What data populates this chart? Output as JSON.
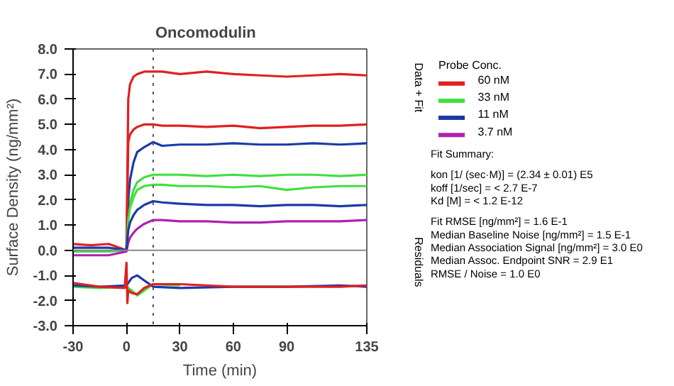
{
  "chart_data": {
    "type": "line",
    "title": "Oncomodulin",
    "xlabel": "Time (min)",
    "ylabel": "Surface Density (ng/mm²)",
    "legend_title": "Probe Conc.",
    "legend": "right",
    "grid": false,
    "line_style": "solid",
    "marker": "none",
    "x": [
      -30,
      -20,
      -10,
      0,
      1,
      2,
      4,
      6,
      10,
      15,
      20,
      30,
      45,
      60,
      75,
      90,
      105,
      120,
      135
    ],
    "xlim": [
      -30,
      135
    ],
    "xticks": [
      -30,
      0,
      30,
      60,
      90,
      135
    ],
    "ylim": [
      -3,
      8
    ],
    "yticks": [
      {
        "value": -3,
        "label": "-3.0"
      },
      {
        "value": -2,
        "label": "-2.0"
      },
      {
        "value": -1,
        "label": "-1.0"
      },
      {
        "value": 0,
        "label": "0.0"
      },
      {
        "value": 1,
        "label": "1.0"
      },
      {
        "value": 2,
        "label": "2.0"
      },
      {
        "value": 3,
        "label": "3.0"
      },
      {
        "value": 4,
        "label": "4.0"
      },
      {
        "value": 5,
        "label": "5.0"
      },
      {
        "value": 6,
        "label": "6.0"
      },
      {
        "value": 7,
        "label": "7.0"
      },
      {
        "value": 8,
        "label": "8.0"
      }
    ],
    "series": [
      {
        "name": "60 nM",
        "color": "#e02020",
        "values": [
          0.25,
          0.2,
          0.25,
          0,
          6.0,
          6.6,
          6.9,
          7.0,
          7.1,
          7.1,
          7.1,
          7.0,
          7.1,
          7.0,
          6.95,
          6.9,
          6.95,
          7.0,
          6.95
        ]
      },
      {
        "name": "33 nM",
        "color": "#40e040",
        "values": [
          -0.05,
          -0.05,
          -0.05,
          0,
          1.3,
          1.9,
          2.4,
          2.7,
          2.9,
          3.0,
          3.0,
          3.0,
          2.95,
          3.0,
          2.95,
          3.0,
          3.0,
          2.95,
          3.0
        ]
      },
      {
        "name": "11 nM",
        "color": "#1a3aa8",
        "values": [
          0.1,
          0.1,
          0.1,
          0,
          2.0,
          2.8,
          3.5,
          3.9,
          4.1,
          4.3,
          4.15,
          4.2,
          4.2,
          4.25,
          4.2,
          4.2,
          4.25,
          4.2,
          4.25
        ]
      },
      {
        "name": "3.7 nM",
        "color": "#b020b0",
        "values": [
          -0.2,
          -0.2,
          -0.2,
          -0.05,
          0.3,
          0.5,
          0.7,
          0.85,
          1.05,
          1.2,
          1.2,
          1.15,
          1.15,
          1.1,
          1.1,
          1.15,
          1.15,
          1.15,
          1.2
        ]
      },
      {
        "color": "#e02020",
        "values": [
          null,
          null,
          null,
          0,
          4.3,
          4.6,
          4.8,
          4.9,
          5.0,
          5.0,
          4.95,
          4.95,
          4.9,
          4.95,
          4.85,
          4.9,
          4.95,
          4.95,
          5.0
        ]
      },
      {
        "color": "#40e040",
        "values": [
          null,
          null,
          null,
          0,
          1.2,
          1.7,
          2.1,
          2.4,
          2.55,
          2.6,
          2.6,
          2.55,
          2.55,
          2.5,
          2.55,
          2.4,
          2.5,
          2.55,
          2.55
        ]
      },
      {
        "color": "#1a3aa8",
        "values": [
          null,
          null,
          null,
          0,
          0.8,
          1.1,
          1.4,
          1.6,
          1.8,
          1.95,
          1.9,
          1.85,
          1.8,
          1.8,
          1.75,
          1.8,
          1.8,
          1.75,
          1.8
        ]
      },
      {
        "color": "#40e040",
        "x": [
          -30,
          -15,
          0,
          3,
          6,
          10,
          15,
          30
        ],
        "values": [
          -1.45,
          -1.5,
          -1.45,
          -1.6,
          -1.8,
          -1.6,
          -1.35,
          -1.4
        ]
      },
      {
        "color": "#1a3aa8",
        "x": [
          -30,
          -15,
          0,
          3,
          6,
          10,
          15,
          30,
          60,
          90,
          120,
          135
        ],
        "values": [
          -1.4,
          -1.45,
          -1.4,
          -1.1,
          -1.0,
          -1.2,
          -1.45,
          -1.5,
          -1.45,
          -1.45,
          -1.4,
          -1.45
        ]
      },
      {
        "color": "#e02020",
        "x": [
          -30,
          -15,
          -1,
          0,
          0.5,
          1,
          3,
          6,
          10,
          15,
          30,
          60,
          90,
          120,
          135
        ],
        "values": [
          -1.3,
          -1.45,
          -1.5,
          -0.5,
          -2.1,
          -1.6,
          -1.7,
          -1.75,
          -1.5,
          -1.35,
          -1.35,
          -1.45,
          -1.45,
          -1.45,
          -1.4
        ]
      }
    ],
    "ref_lines": [
      {
        "axis": "x",
        "value": 15,
        "color": "#555555",
        "line_style": "dotted"
      },
      {
        "axis": "y",
        "value": 0,
        "color": "#888888",
        "line_style": "solid"
      }
    ],
    "annotations": [
      "Data + Fit",
      "Residuals",
      "Fit Summary:",
      "kon  [1/ (sec·M)]  =   (2.34 ± 0.01) E5",
      "koff  [1/sec]  =   < 2.7 E-7",
      "Kd  [M]  =   < 1.2 E-12",
      "Fit RMSE [ng/mm²]  =   1.6 E-1",
      "Median Baseline Noise [ng/mm²]  =   1.5 E-1",
      "Median Association Signal [ng/mm²]  =   3.0 E0",
      "Median Assoc. Endpoint SNR  =   2.9 E1",
      "RMSE / Noise  =   1.0 E0"
    ]
  }
}
